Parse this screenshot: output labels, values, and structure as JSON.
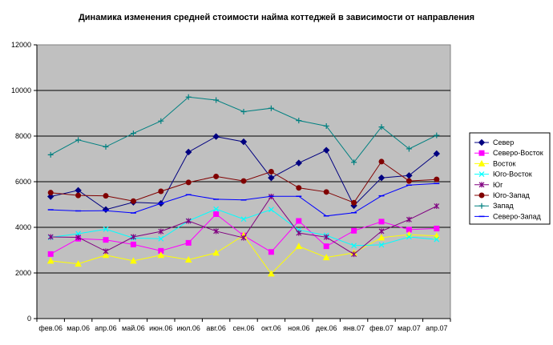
{
  "chart_data": {
    "type": "line",
    "title": "Динамика изменения средней стоимости найма коттеджей в зависимости от направления",
    "xlabel": "",
    "ylabel": "",
    "ylim": [
      0,
      12000
    ],
    "yticks": [
      0,
      2000,
      4000,
      6000,
      8000,
      10000,
      12000
    ],
    "grid": "horizontal",
    "background": "#c0c0c0",
    "legend_position": "right",
    "categories": [
      "фев.06",
      "мар.06",
      "апр.06",
      "май.06",
      "июн.06",
      "июл.06",
      "авг.06",
      "сен.06",
      "окт.06",
      "ноя.06",
      "дек.06",
      "янв.07",
      "фев.07",
      "мар.07",
      "апр.07"
    ],
    "series": [
      {
        "name": "Север",
        "color": "#000080",
        "marker": "diamond",
        "values": [
          5350,
          5620,
          4780,
          5100,
          5050,
          7300,
          7980,
          7750,
          6170,
          6820,
          7380,
          4950,
          6170,
          6270,
          7230
        ]
      },
      {
        "name": "Северо-Восток",
        "color": "#ff00ff",
        "marker": "square",
        "values": [
          2830,
          3500,
          3450,
          3250,
          2970,
          3320,
          4580,
          3640,
          2920,
          4280,
          3170,
          3850,
          4250,
          3900,
          3950
        ]
      },
      {
        "name": "Восток",
        "color": "#ffff00",
        "marker": "triangle",
        "values": [
          2530,
          2400,
          2780,
          2530,
          2780,
          2580,
          2880,
          3650,
          1970,
          3170,
          2680,
          2880,
          3550,
          3680,
          3620
        ]
      },
      {
        "name": "Юго-Восток",
        "color": "#00ffff",
        "marker": "x",
        "values": [
          3560,
          3720,
          3920,
          3530,
          3500,
          4280,
          4800,
          4360,
          4780,
          3880,
          3650,
          3200,
          3230,
          3580,
          3470
        ]
      },
      {
        "name": "Юг",
        "color": "#800080",
        "marker": "star",
        "values": [
          3580,
          3560,
          2950,
          3580,
          3820,
          4280,
          3830,
          3540,
          5350,
          3750,
          3570,
          2820,
          3830,
          4340,
          4930
        ]
      },
      {
        "name": "Юго-Запад",
        "color": "#800000",
        "marker": "circle",
        "values": [
          5520,
          5400,
          5380,
          5150,
          5580,
          5970,
          6230,
          6030,
          6440,
          5730,
          5550,
          5080,
          6880,
          6030,
          6100
        ]
      },
      {
        "name": "Запад",
        "color": "#008080",
        "marker": "plus",
        "values": [
          7180,
          7830,
          7530,
          8120,
          8660,
          9710,
          9580,
          9070,
          9220,
          8680,
          8440,
          6850,
          8400,
          7440,
          8030
        ]
      },
      {
        "name": "Северо-Запад",
        "color": "#0000ff",
        "marker": "dash",
        "values": [
          4770,
          4720,
          4730,
          4630,
          5050,
          5430,
          5230,
          5200,
          5360,
          5360,
          4500,
          4640,
          5380,
          5850,
          5920
        ]
      }
    ]
  }
}
